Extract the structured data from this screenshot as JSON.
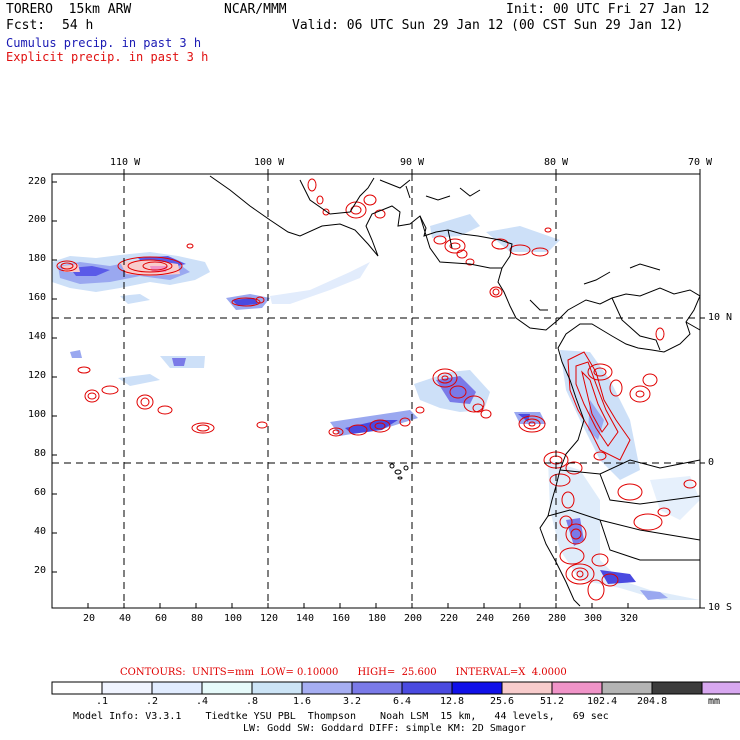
{
  "header": {
    "model": "TORERO  15km ARW",
    "org": "NCAR/MMM",
    "init": "Init: 00 UTC Fri 27 Jan 12",
    "fcst_label": "Fcst:",
    "fcst_value": "54 h",
    "valid": "Valid: 06 UTC Sun 29 Jan 12 (00 CST Sun 29 Jan 12)",
    "cumulus": "Cumulus precip. in past 3 h",
    "explicit": "Explicit precip. in past 3 h"
  },
  "colors": {
    "cumulus": "#1a1ab4",
    "explicit": "#e01010",
    "contour": "#e00000",
    "coast": "#000000"
  },
  "axes": {
    "top_lon": [
      "110 W",
      "100 W",
      "90 W",
      "80 W",
      "70 W"
    ],
    "right_lat": [
      "10 N",
      "0",
      "10 S"
    ],
    "y_ticks": [
      "220",
      "200",
      "180",
      "160",
      "140",
      "120",
      "100",
      "80",
      "60",
      "40",
      "20"
    ],
    "x_ticks": [
      "20",
      "40",
      "60",
      "80",
      "100",
      "120",
      "140",
      "160",
      "180",
      "200",
      "220",
      "240",
      "260",
      "280",
      "300",
      "320"
    ]
  },
  "contour_info": {
    "label": "CONTOURS:  UNITS=mm  LOW= 0.10000      HIGH=  25.600      INTERVAL=X  4.0000"
  },
  "colorbar": {
    "colors": [
      "#ffffff",
      "#f0f4ff",
      "#e1ecff",
      "#e6fafa",
      "#cce4f6",
      "#a6aef2",
      "#7a7ae8",
      "#4a4ae0",
      "#1010e8",
      "#f8cccc",
      "#f094c8",
      "#b4b4b4",
      "#3c3c3c",
      "#d8a8f0"
    ],
    "labels": [
      ".1",
      ".2",
      ".4",
      ".8",
      "1.6",
      "3.2",
      "6.4",
      "12.8",
      "25.6",
      "51.2",
      "102.4",
      "204.8"
    ],
    "units": "mm"
  },
  "footer": {
    "line1": "Model Info: V3.3.1    Tiedtke YSU PBL  Thompson    Noah LSM  15 km,   44 levels,   69 sec",
    "line2": "LW: Godd SW: Goddard DIFF: simple KM: 2D Smagor"
  }
}
